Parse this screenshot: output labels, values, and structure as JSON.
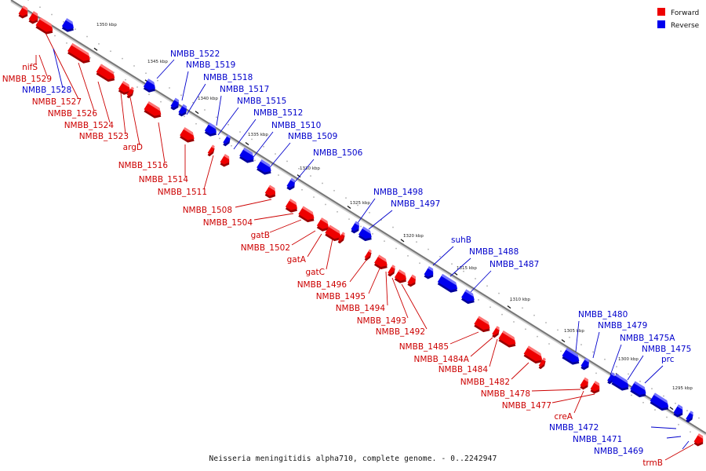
{
  "legend": {
    "forward_label": "Forward",
    "reverse_label": "Reverse",
    "forward_color": "#ee0000",
    "reverse_color": "#0000ee"
  },
  "colors": {
    "forward": "#ee0000",
    "forward_dark": "#990000",
    "forward_light": "#ff8a8a",
    "reverse": "#0000ee",
    "reverse_dark": "#000099",
    "reverse_light": "#8a8aff",
    "backbone": "#777777"
  },
  "caption": "Neisseria meningitidis alpha710, complete genome. - 0..2242947",
  "kbp_ticks": [
    "1350 kbp",
    "1345 kbp",
    "1340 kbp",
    "1335 kbp",
    "1330 kbp",
    "1325 kbp",
    "1320 kbp",
    "1315 kbp",
    "1310 kbp",
    "1305 kbp",
    "1300 kbp",
    "1295 kbp"
  ],
  "forward_genes": [
    "nifS",
    "NMBB_1529",
    "NMBB_1527",
    "NMBB_1526",
    "NMBB_1524",
    "NMBB_1523",
    "argD",
    "NMBB_1516",
    "NMBB_1514",
    "NMBB_1511",
    "NMBB_1508",
    "NMBB_1504",
    "gatB",
    "NMBB_1502",
    "gatA",
    "gatC",
    "NMBB_1496",
    "NMBB_1495",
    "NMBB_1494",
    "NMBB_1493",
    "NMBB_1492",
    "NMBB_1485",
    "NMBB_1484A",
    "NMBB_1484",
    "NMBB_1482",
    "NMBB_1478",
    "NMBB_1477",
    "creA",
    "trmB"
  ],
  "reverse_genes": [
    "NMBB_1528",
    "NMBB_1522",
    "NMBB_1519",
    "NMBB_1518",
    "NMBB_1517",
    "NMBB_1515",
    "NMBB_1512",
    "NMBB_1510",
    "NMBB_1509",
    "NMBB_1506",
    "NMBB_1498",
    "NMBB_1497",
    "suhB",
    "NMBB_1488",
    "NMBB_1487",
    "NMBB_1480",
    "NMBB_1479",
    "NMBB_1475A",
    "NMBB_1475",
    "prc",
    "NMBB_1472",
    "NMBB_1471",
    "NMBB_1469"
  ]
}
